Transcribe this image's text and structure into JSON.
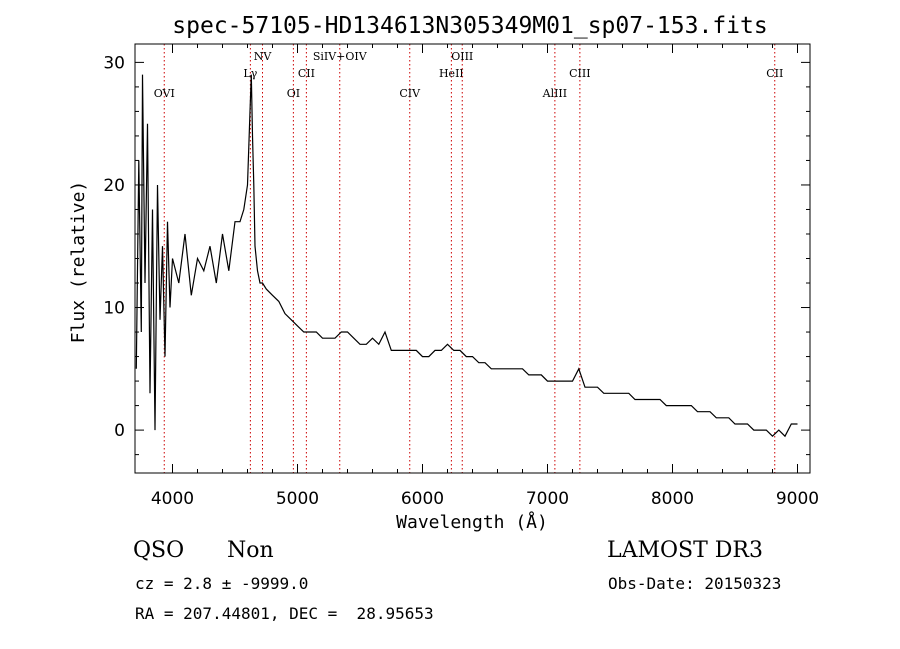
{
  "chart_data": {
    "type": "line",
    "title": "spec-57105-HD134613N305349M01_sp07-153.fits",
    "xlabel": "Wavelength (Å)",
    "ylabel": "Flux (relative)",
    "xlim": [
      3700,
      9100
    ],
    "ylim": [
      -3.5,
      31.5
    ],
    "xticks": [
      4000,
      5000,
      6000,
      7000,
      8000,
      9000
    ],
    "yticks": [
      0,
      10,
      20,
      30
    ],
    "grid": false,
    "line_color": "#000000",
    "marker_color": "#cc0000",
    "series": [
      {
        "x": [
          3710,
          3730,
          3750,
          3760,
          3780,
          3800,
          3820,
          3840,
          3860,
          3880,
          3900,
          3920,
          3940,
          3960,
          3980,
          4000,
          4050,
          4100,
          4150,
          4200,
          4250,
          4300,
          4350,
          4400,
          4450,
          4500,
          4540,
          4570,
          4600,
          4620,
          4630,
          4640,
          4650,
          4660,
          4680,
          4700,
          4720,
          4750,
          4800,
          4850,
          4900,
          4950,
          5000,
          5050,
          5100,
          5150,
          5200,
          5250,
          5300,
          5350,
          5400,
          5450,
          5500,
          5550,
          5600,
          5650,
          5700,
          5750,
          5800,
          5850,
          5900,
          5950,
          6000,
          6050,
          6100,
          6150,
          6200,
          6250,
          6300,
          6350,
          6400,
          6450,
          6500,
          6550,
          6600,
          6650,
          6700,
          6750,
          6800,
          6850,
          6900,
          6950,
          7000,
          7050,
          7100,
          7150,
          7200,
          7250,
          7300,
          7350,
          7400,
          7450,
          7500,
          7550,
          7600,
          7650,
          7700,
          7750,
          7800,
          7850,
          7900,
          7950,
          8000,
          8050,
          8100,
          8150,
          8200,
          8250,
          8300,
          8350,
          8400,
          8450,
          8500,
          8550,
          8600,
          8650,
          8700,
          8750,
          8800,
          8850,
          8900,
          8950,
          9000
        ],
        "y": [
          5,
          22,
          8,
          29,
          12,
          25,
          3,
          18,
          0,
          20,
          9,
          15,
          6,
          17,
          10,
          14,
          12,
          16,
          11,
          14,
          13,
          15,
          12,
          16,
          13,
          17,
          17,
          18,
          20,
          26,
          29,
          24,
          20,
          15,
          13,
          12,
          12,
          11.5,
          11,
          10.5,
          9.5,
          9,
          8.5,
          8,
          8,
          8,
          7.5,
          7.5,
          7.5,
          8,
          8,
          7.5,
          7,
          7,
          7.5,
          7,
          8,
          6.5,
          6.5,
          6.5,
          6.5,
          6.5,
          6,
          6,
          6.5,
          6.5,
          7,
          6.5,
          6.5,
          6,
          6,
          5.5,
          5.5,
          5,
          5,
          5,
          5,
          5,
          5,
          4.5,
          4.5,
          4.5,
          4,
          4,
          4,
          4,
          4,
          5,
          3.5,
          3.5,
          3.5,
          3,
          3,
          3,
          3,
          3,
          2.5,
          2.5,
          2.5,
          2.5,
          2.5,
          2,
          2,
          2,
          2,
          2,
          1.5,
          1.5,
          1.5,
          1,
          1,
          1,
          0.5,
          0.5,
          0.5,
          0,
          0,
          0,
          -0.5,
          0,
          -0.5,
          0.5,
          0.5
        ]
      }
    ],
    "lines": [
      {
        "name": "OVI",
        "x": 3934,
        "tier": 3
      },
      {
        "name": "Lγ",
        "x": 4623,
        "tier": 1
      },
      {
        "name": "NV",
        "x": 4720,
        "tier": 0
      },
      {
        "name": "OI",
        "x": 4967,
        "tier": 3
      },
      {
        "name": "CII",
        "x": 5071,
        "tier": 1
      },
      {
        "name": "SiIV+OIV",
        "x": 5338,
        "tier": 0
      },
      {
        "name": "CIV",
        "x": 5898,
        "tier": 3
      },
      {
        "name": "HeII",
        "x": 6231,
        "tier": 1
      },
      {
        "name": "OIII",
        "x": 6318,
        "tier": 0
      },
      {
        "name": "AlIII",
        "x": 7059,
        "tier": 3
      },
      {
        "name": "CIII",
        "x": 7259,
        "tier": 1
      },
      {
        "name": "CII",
        "x": 8818,
        "tier": 1
      }
    ]
  },
  "info": {
    "class": "QSO",
    "subclass": "Non",
    "cz": "cz = 2.8 ± -9999.0",
    "radec": "RA = 207.44801, DEC =  28.95653",
    "survey": "LAMOST DR3",
    "obs_date": "Obs-Date: 20150323"
  }
}
